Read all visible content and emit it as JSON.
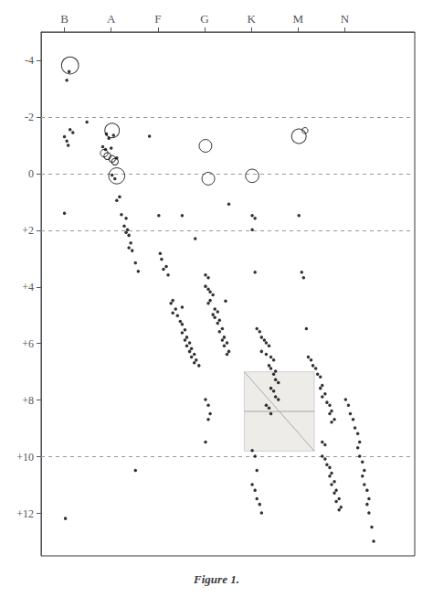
{
  "chart_data": {
    "type": "scatter",
    "title": "Figure 1.",
    "xlim": [
      -0.5,
      7.5
    ],
    "xticks": [
      {
        "value": 0,
        "label": "B"
      },
      {
        "value": 1,
        "label": "A"
      },
      {
        "value": 2,
        "label": "F"
      },
      {
        "value": 3,
        "label": "G"
      },
      {
        "value": 4,
        "label": "K"
      },
      {
        "value": 5,
        "label": "M"
      },
      {
        "value": 6,
        "label": "N"
      }
    ],
    "ylim": [
      13.5,
      -5.0
    ],
    "yticks": [
      -4,
      -2,
      0,
      {
        "value": 2,
        "label": "+2"
      },
      {
        "value": 4,
        "label": "+4"
      },
      {
        "value": 6,
        "label": "+6"
      },
      {
        "value": 8,
        "label": "+8"
      },
      {
        "value": 10,
        "label": "+10"
      },
      {
        "value": 12,
        "label": "+12"
      }
    ],
    "grid": false,
    "series": [
      {
        "type": "scatter",
        "marker": "dot",
        "color": "#000000",
        "values": [
          [
            0.05,
            -3.3
          ],
          [
            0.1,
            -3.6
          ],
          [
            0.0,
            -1.3
          ],
          [
            0.05,
            -1.15
          ],
          [
            0.08,
            -1.0
          ],
          [
            0.12,
            -1.55
          ],
          [
            0.18,
            -1.45
          ],
          [
            0.0,
            1.4
          ],
          [
            0.9,
            -1.4
          ],
          [
            0.95,
            -1.25
          ],
          [
            1.05,
            -1.35
          ],
          [
            0.82,
            -0.95
          ],
          [
            0.88,
            -0.85
          ],
          [
            1.0,
            -0.9
          ],
          [
            1.12,
            -0.55
          ],
          [
            1.02,
            0.05
          ],
          [
            1.08,
            0.18
          ],
          [
            1.12,
            0.95
          ],
          [
            1.18,
            0.82
          ],
          [
            1.22,
            1.45
          ],
          [
            1.32,
            1.58
          ],
          [
            1.28,
            1.85
          ],
          [
            1.35,
            1.98
          ],
          [
            1.38,
            2.18
          ],
          [
            1.32,
            2.08
          ],
          [
            1.42,
            2.45
          ],
          [
            1.38,
            2.62
          ],
          [
            1.45,
            2.72
          ],
          [
            1.52,
            3.15
          ],
          [
            1.58,
            3.45
          ],
          [
            2.02,
            1.48
          ],
          [
            2.05,
            2.82
          ],
          [
            2.08,
            3.02
          ],
          [
            2.12,
            3.38
          ],
          [
            2.18,
            3.28
          ],
          [
            2.22,
            3.58
          ],
          [
            2.32,
            4.48
          ],
          [
            2.28,
            4.58
          ],
          [
            2.38,
            4.78
          ],
          [
            2.32,
            4.92
          ],
          [
            2.42,
            5.02
          ],
          [
            2.48,
            5.22
          ],
          [
            2.52,
            5.32
          ],
          [
            2.58,
            5.52
          ],
          [
            2.52,
            5.62
          ],
          [
            2.62,
            5.78
          ],
          [
            2.58,
            5.88
          ],
          [
            2.68,
            5.98
          ],
          [
            2.62,
            6.08
          ],
          [
            2.72,
            6.18
          ],
          [
            2.68,
            6.28
          ],
          [
            2.78,
            6.38
          ],
          [
            2.72,
            6.48
          ],
          [
            2.82,
            6.58
          ],
          [
            2.78,
            6.68
          ],
          [
            2.88,
            6.78
          ],
          [
            3.02,
            3.58
          ],
          [
            3.08,
            3.68
          ],
          [
            3.02,
            3.98
          ],
          [
            3.08,
            4.08
          ],
          [
            3.12,
            4.18
          ],
          [
            3.18,
            4.28
          ],
          [
            3.12,
            4.48
          ],
          [
            3.08,
            4.58
          ],
          [
            3.22,
            4.78
          ],
          [
            3.28,
            4.88
          ],
          [
            3.18,
            4.98
          ],
          [
            3.22,
            5.08
          ],
          [
            3.32,
            5.18
          ],
          [
            3.28,
            5.28
          ],
          [
            3.38,
            5.48
          ],
          [
            3.32,
            5.58
          ],
          [
            3.42,
            5.78
          ],
          [
            3.38,
            5.88
          ],
          [
            3.48,
            5.98
          ],
          [
            3.42,
            6.08
          ],
          [
            3.52,
            6.28
          ],
          [
            3.48,
            6.38
          ],
          [
            3.02,
            7.98
          ],
          [
            3.08,
            8.18
          ],
          [
            3.12,
            8.48
          ],
          [
            3.08,
            8.68
          ],
          [
            3.02,
            9.48
          ],
          [
            2.52,
            4.72
          ],
          [
            4.02,
            1.48
          ],
          [
            4.08,
            1.58
          ],
          [
            4.02,
            1.98
          ],
          [
            4.08,
            3.48
          ],
          [
            4.12,
            5.48
          ],
          [
            4.18,
            5.58
          ],
          [
            4.22,
            5.78
          ],
          [
            4.28,
            5.88
          ],
          [
            4.32,
            5.98
          ],
          [
            4.38,
            6.08
          ],
          [
            4.22,
            6.28
          ],
          [
            4.32,
            6.38
          ],
          [
            4.42,
            6.48
          ],
          [
            4.48,
            6.58
          ],
          [
            4.38,
            6.78
          ],
          [
            4.42,
            6.88
          ],
          [
            4.52,
            6.98
          ],
          [
            4.48,
            7.08
          ],
          [
            4.52,
            7.28
          ],
          [
            4.58,
            7.38
          ],
          [
            4.42,
            7.58
          ],
          [
            4.48,
            7.68
          ],
          [
            4.52,
            7.88
          ],
          [
            4.58,
            7.98
          ],
          [
            4.32,
            8.18
          ],
          [
            4.38,
            8.28
          ],
          [
            4.42,
            8.48
          ],
          [
            4.02,
            9.78
          ],
          [
            4.08,
            9.98
          ],
          [
            4.12,
            10.48
          ],
          [
            4.02,
            10.98
          ],
          [
            4.08,
            11.18
          ],
          [
            4.12,
            11.48
          ],
          [
            4.18,
            11.68
          ],
          [
            4.22,
            11.98
          ],
          [
            5.02,
            1.48
          ],
          [
            5.08,
            3.48
          ],
          [
            5.12,
            3.68
          ],
          [
            5.18,
            5.48
          ],
          [
            5.22,
            6.48
          ],
          [
            5.28,
            6.58
          ],
          [
            5.32,
            6.78
          ],
          [
            5.38,
            6.88
          ],
          [
            5.42,
            7.08
          ],
          [
            5.48,
            7.18
          ],
          [
            5.52,
            7.48
          ],
          [
            5.48,
            7.58
          ],
          [
            5.58,
            7.78
          ],
          [
            5.52,
            7.88
          ],
          [
            5.62,
            8.08
          ],
          [
            5.68,
            8.18
          ],
          [
            5.72,
            8.38
          ],
          [
            5.68,
            8.48
          ],
          [
            5.78,
            8.68
          ],
          [
            5.72,
            8.78
          ],
          [
            5.52,
            9.48
          ],
          [
            5.58,
            9.58
          ],
          [
            5.52,
            9.98
          ],
          [
            5.58,
            10.08
          ],
          [
            5.62,
            10.28
          ],
          [
            5.68,
            10.38
          ],
          [
            5.72,
            10.58
          ],
          [
            5.68,
            10.68
          ],
          [
            5.78,
            10.88
          ],
          [
            5.72,
            10.98
          ],
          [
            5.82,
            11.18
          ],
          [
            5.78,
            11.28
          ],
          [
            5.88,
            11.48
          ],
          [
            5.82,
            11.58
          ],
          [
            5.92,
            11.78
          ],
          [
            5.88,
            11.88
          ],
          [
            6.02,
            7.98
          ],
          [
            6.08,
            8.18
          ],
          [
            6.12,
            8.48
          ],
          [
            6.18,
            8.68
          ],
          [
            6.22,
            8.98
          ],
          [
            6.28,
            9.18
          ],
          [
            6.32,
            9.48
          ],
          [
            6.28,
            9.68
          ],
          [
            6.32,
            9.98
          ],
          [
            6.38,
            10.18
          ],
          [
            6.42,
            10.48
          ],
          [
            6.38,
            10.68
          ],
          [
            6.42,
            10.98
          ],
          [
            6.48,
            11.18
          ],
          [
            6.52,
            11.48
          ],
          [
            6.48,
            11.68
          ],
          [
            6.52,
            11.98
          ],
          [
            6.58,
            12.48
          ],
          [
            6.62,
            12.98
          ],
          [
            0.48,
            -1.82
          ],
          [
            1.82,
            -1.32
          ],
          [
            2.52,
            1.48
          ],
          [
            3.52,
            1.08
          ],
          [
            1.52,
            10.48
          ],
          [
            0.02,
            12.18
          ],
          [
            3.45,
            4.5
          ],
          [
            2.8,
            2.3
          ]
        ]
      },
      {
        "type": "scatter",
        "marker": "open circle",
        "color": "#000000",
        "values": [
          [
            0.12,
            -3.82
          ],
          [
            1.02,
            -1.52
          ],
          [
            1.12,
            0.08
          ],
          [
            3.02,
            -0.98
          ],
          [
            3.08,
            0.18
          ],
          [
            5.02,
            -1.32
          ],
          [
            4.02,
            0.08
          ]
        ],
        "sizes": [
          180,
          130,
          160,
          100,
          100,
          130,
          110
        ]
      },
      {
        "type": "scatter",
        "marker": "open circle",
        "color": "#000000",
        "values": [
          [
            0.85,
            -0.72
          ],
          [
            0.92,
            -0.62
          ],
          [
            1.02,
            -0.52
          ],
          [
            1.08,
            -0.42
          ],
          [
            5.15,
            -1.52
          ]
        ],
        "sizes": [
          35,
          30,
          28,
          28,
          22
        ]
      }
    ],
    "region": {
      "x": [
        3.85,
        5.35
      ],
      "y": [
        7.0,
        9.8
      ],
      "color": "#d8d4cc"
    },
    "lines": [
      {
        "points": [
          [
            3.85,
            7.0
          ],
          [
            5.35,
            9.8
          ]
        ],
        "color": "#aaaaaa"
      },
      {
        "points": [
          [
            3.85,
            8.4
          ],
          [
            5.35,
            8.4
          ]
        ],
        "color": "#aaaaaa"
      }
    ],
    "hlines": {
      "values": [
        -2.0,
        2.0,
        10.0,
        0.0
      ],
      "line_style": "dashed",
      "color": "#999999"
    }
  }
}
